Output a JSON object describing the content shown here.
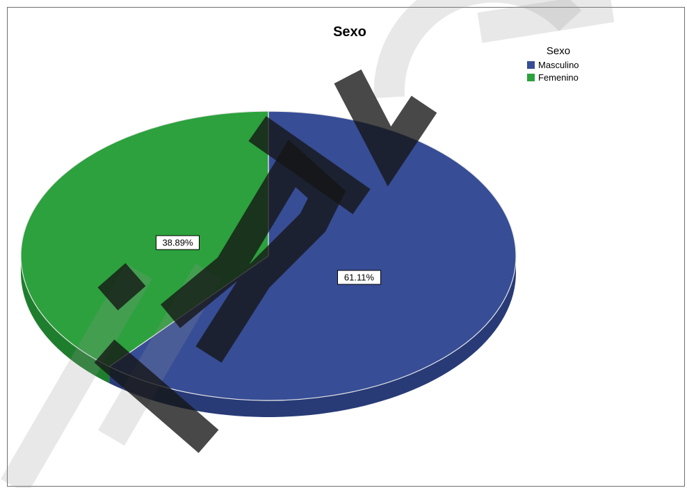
{
  "chart_data": {
    "type": "pie",
    "title": "Sexo",
    "legend": {
      "title": "Sexo",
      "placement": "top-right"
    },
    "slices": [
      {
        "label": "Masculino",
        "value": 61.11,
        "display": "61.11%",
        "color": "#374d96",
        "side_color": "#283b77"
      },
      {
        "label": "Femenino",
        "value": 38.89,
        "display": "38.89%",
        "color": "#2ca13d",
        "side_color": "#1f7e2e"
      }
    ],
    "start_angle_deg": 0,
    "direction": "clockwise",
    "three_d": true
  }
}
